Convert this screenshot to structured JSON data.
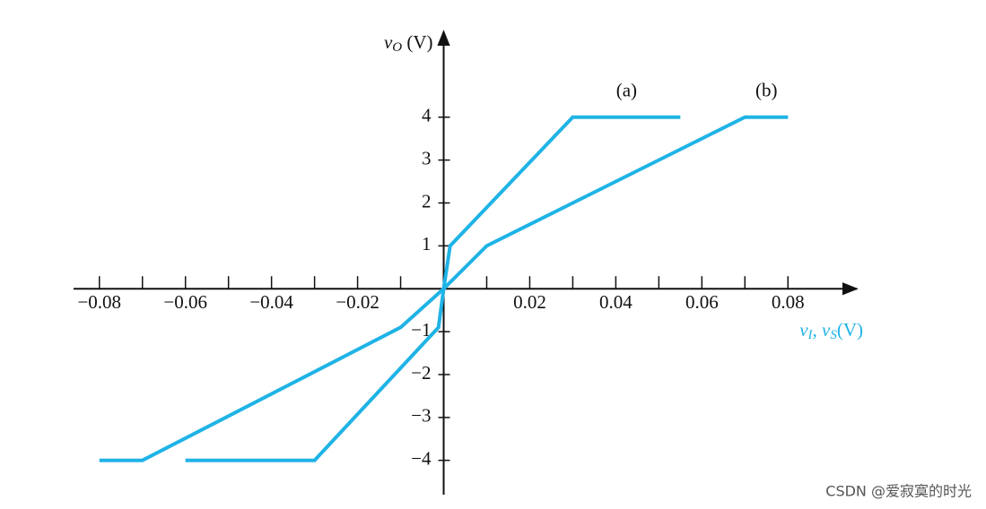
{
  "chart_data": {
    "type": "line",
    "y_label_parts": [
      {
        "text": "v",
        "italic": true
      },
      {
        "text": "O",
        "italic": true,
        "sub": true
      },
      {
        "text": " (V)"
      }
    ],
    "x_label_parts": [
      {
        "text": "v",
        "italic": true
      },
      {
        "text": "I",
        "italic": true,
        "sub": true
      },
      {
        "text": ", "
      },
      {
        "text": "v",
        "italic": true
      },
      {
        "text": "S",
        "italic": true,
        "sub": true
      },
      {
        "text": "(V)"
      }
    ],
    "x_label_color": "#1fb3e6",
    "xlim": [
      -0.086,
      0.096
    ],
    "ylim": [
      -4.8,
      6
    ],
    "xticks": [
      {
        "value": -0.08,
        "label": "−0.08"
      },
      {
        "value": -0.06,
        "label": "−0.06"
      },
      {
        "value": -0.04,
        "label": "−0.04"
      },
      {
        "value": -0.02,
        "label": "−0.02"
      },
      0.02,
      0.04,
      0.06,
      0.08
    ],
    "minor_xticks": [
      -0.07,
      -0.05,
      -0.03,
      -0.01,
      0.01,
      0.03,
      0.05,
      0.07
    ],
    "yticks": [
      {
        "value": -4,
        "label": "−4"
      },
      {
        "value": -3,
        "label": "−3"
      },
      {
        "value": -2,
        "label": "−2"
      },
      {
        "value": -1,
        "label": "−1"
      },
      1,
      2,
      3,
      4
    ],
    "series": [
      {
        "name": "(a)",
        "color": "#1fb3e6",
        "x": [
          -0.06,
          -0.03,
          -0.0012,
          0,
          0.0015,
          0.03,
          0.055
        ],
        "values": [
          -4,
          -4,
          -0.9,
          0,
          1,
          4,
          4
        ]
      },
      {
        "name": "(b)",
        "color": "#1fb3e6",
        "x": [
          -0.08,
          -0.07,
          -0.01,
          0,
          0.01,
          0.07,
          0.08
        ],
        "values": [
          -4,
          -4,
          -0.9,
          0,
          1,
          4,
          4
        ]
      }
    ]
  },
  "watermark": "CSDN @爱寂寞的时光"
}
